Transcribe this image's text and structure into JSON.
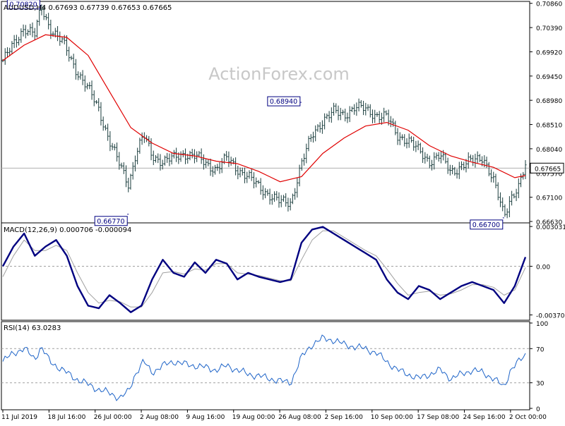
{
  "watermark": "ActionForex.com",
  "chart_data": [
    {
      "type": "candlestick",
      "header": "AUDUSD,H4  0.67693 0.67739 0.67653 0.67665",
      "last_price": "0.67665",
      "ylim": [
        0.6663,
        0.7087
      ],
      "yticks": [
        0.7086,
        0.7039,
        0.6992,
        0.6945,
        0.6898,
        0.6851,
        0.6804,
        0.6757,
        0.671,
        0.6663
      ],
      "ytick_labels": [
        "0.70860",
        "0.70390",
        "0.69920",
        "0.69450",
        "0.68980",
        "0.68510",
        "0.68040",
        "0.67570",
        "0.67100",
        "0.66630"
      ],
      "annotations": [
        {
          "label": "0.70820",
          "x": 18,
          "value": 0.7082
        },
        {
          "label": "0.66770",
          "x": 59,
          "value": 0.6677
        },
        {
          "label": "0.68940",
          "x": 140,
          "value": 0.6894
        },
        {
          "label": "0.66700",
          "x": 235,
          "value": 0.667
        }
      ],
      "series": [
        {
          "type": "ohlc-path",
          "x": [
            0,
            5,
            10,
            15,
            18,
            22,
            28,
            34,
            40,
            45,
            50,
            55,
            59,
            62,
            66,
            70,
            75,
            80,
            85,
            90,
            95,
            100,
            105,
            110,
            115,
            120,
            125,
            130,
            135,
            140,
            145,
            150,
            155,
            160,
            165,
            170,
            175,
            180,
            185,
            190,
            195,
            200,
            205,
            210,
            215,
            220,
            225,
            230,
            235,
            238,
            242,
            245
          ],
          "close": [
            0.6975,
            0.7005,
            0.704,
            0.7025,
            0.7078,
            0.704,
            0.701,
            0.696,
            0.692,
            0.688,
            0.682,
            0.677,
            0.6735,
            0.679,
            0.683,
            0.679,
            0.678,
            0.6785,
            0.6795,
            0.679,
            0.6775,
            0.6765,
            0.6785,
            0.6765,
            0.675,
            0.673,
            0.6715,
            0.67,
            0.67,
            0.6775,
            0.683,
            0.686,
            0.6875,
            0.687,
            0.6885,
            0.688,
            0.687,
            0.6865,
            0.683,
            0.682,
            0.68,
            0.678,
            0.679,
            0.676,
            0.677,
            0.678,
            0.679,
            0.674,
            0.6675,
            0.671,
            0.673,
            0.677
          ]
        },
        {
          "name": "",
          "type": "moving-average",
          "color": "#e00000",
          "x": [
            0,
            10,
            20,
            30,
            40,
            50,
            60,
            70,
            80,
            90,
            100,
            110,
            120,
            130,
            140,
            150,
            160,
            170,
            180,
            190,
            200,
            210,
            220,
            230,
            240,
            245
          ],
          "values": [
            0.6975,
            0.7005,
            0.7025,
            0.702,
            0.6985,
            0.6915,
            0.6845,
            0.6815,
            0.6795,
            0.679,
            0.678,
            0.6775,
            0.676,
            0.674,
            0.675,
            0.6795,
            0.6825,
            0.6848,
            0.6855,
            0.684,
            0.681,
            0.679,
            0.6778,
            0.6768,
            0.6748,
            0.6752
          ]
        }
      ],
      "xlabels": [
        "11 Jul 2019",
        "18 Jul 16:00",
        "26 Jul 00:00",
        "2 Aug 08:00",
        "9 Aug 16:00",
        "19 Aug 00:00",
        "26 Aug 08:00",
        "2 Sep 16:00",
        "10 Sep 00:00",
        "17 Sep 08:00",
        "24 Sep 16:00",
        "2 Oct 00:00"
      ]
    },
    {
      "type": "line",
      "title": "MACD(12,26,9) 0.000706 -0.000094",
      "ylim": [
        -0.004,
        0.0032
      ],
      "ytick_labels": [
        "0.003031",
        "0.00",
        "-0.003706"
      ],
      "yticks": [
        0.003031,
        0.0,
        -0.003706
      ],
      "x": [
        0,
        5,
        10,
        15,
        20,
        25,
        30,
        35,
        40,
        45,
        50,
        55,
        60,
        65,
        70,
        75,
        80,
        85,
        90,
        95,
        100,
        105,
        110,
        115,
        120,
        125,
        130,
        135,
        140,
        145,
        150,
        155,
        160,
        165,
        170,
        175,
        180,
        185,
        190,
        195,
        200,
        205,
        210,
        215,
        220,
        225,
        230,
        235,
        240,
        245
      ],
      "series": [
        {
          "name": "",
          "color": "#000080",
          "values": [
            0.0,
            0.0015,
            0.0025,
            0.0008,
            0.0015,
            0.002,
            0.0008,
            -0.0015,
            -0.003,
            -0.0032,
            -0.0022,
            -0.0028,
            -0.0035,
            -0.003,
            -0.001,
            0.0005,
            -0.0005,
            -0.0008,
            0.0003,
            -0.0005,
            0.0005,
            0.0002,
            -0.001,
            -0.0005,
            -0.0008,
            -0.001,
            -0.0012,
            -0.001,
            0.0018,
            0.0028,
            0.003,
            0.0025,
            0.002,
            0.0015,
            0.001,
            0.0005,
            -0.001,
            -0.002,
            -0.0025,
            -0.0015,
            -0.0018,
            -0.0025,
            -0.002,
            -0.0015,
            -0.0012,
            -0.0015,
            -0.0018,
            -0.0028,
            -0.0015,
            0.0007
          ]
        },
        {
          "name": "",
          "color": "#a0a0a0",
          "values": [
            -0.0008,
            0.0008,
            0.002,
            0.0012,
            0.0012,
            0.0016,
            0.0012,
            -0.0005,
            -0.002,
            -0.0028,
            -0.0026,
            -0.0027,
            -0.0031,
            -0.0031,
            -0.002,
            -0.0005,
            -0.0004,
            -0.0006,
            -0.0002,
            -0.0003,
            0.0002,
            0.0002,
            -0.0005,
            -0.0006,
            -0.0007,
            -0.0009,
            -0.0011,
            -0.0011,
            0.0005,
            0.002,
            0.0027,
            0.0027,
            0.0022,
            0.0017,
            0.0012,
            0.0008,
            -0.0002,
            -0.0013,
            -0.0022,
            -0.002,
            -0.0019,
            -0.0022,
            -0.0021,
            -0.0018,
            -0.0014,
            -0.0014,
            -0.0016,
            -0.0022,
            -0.0018,
            -0.0001
          ]
        }
      ]
    },
    {
      "type": "line",
      "title": "RSI(14) 63.0283",
      "ylim": [
        0,
        100
      ],
      "yticks": [
        100,
        70,
        30,
        0
      ],
      "ytick_labels": [
        "100",
        "70",
        "30",
        "0"
      ],
      "x": [
        0,
        5,
        10,
        15,
        18,
        22,
        28,
        34,
        40,
        45,
        50,
        55,
        59,
        62,
        66,
        70,
        75,
        80,
        85,
        90,
        95,
        100,
        105,
        110,
        115,
        120,
        125,
        130,
        135,
        140,
        145,
        150,
        155,
        160,
        165,
        170,
        175,
        180,
        185,
        190,
        195,
        200,
        205,
        210,
        215,
        220,
        225,
        230,
        235,
        238,
        242,
        245
      ],
      "series": [
        {
          "name": "",
          "color": "#1e64c8",
          "values": [
            55,
            65,
            70,
            58,
            72,
            55,
            45,
            35,
            28,
            22,
            18,
            12,
            20,
            40,
            55,
            42,
            50,
            55,
            52,
            50,
            48,
            45,
            50,
            45,
            40,
            38,
            35,
            32,
            30,
            60,
            75,
            82,
            80,
            75,
            72,
            70,
            65,
            55,
            45,
            40,
            35,
            40,
            45,
            35,
            40,
            45,
            42,
            35,
            25,
            45,
            55,
            63
          ]
        }
      ]
    }
  ]
}
